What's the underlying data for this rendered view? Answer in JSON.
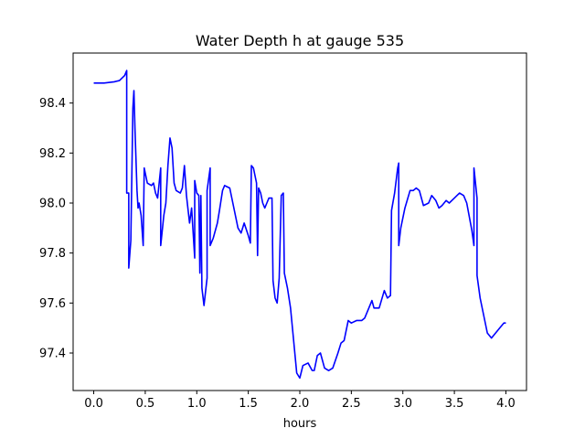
{
  "chart_data": {
    "type": "line",
    "title": "Water Depth h at gauge 535",
    "xlabel": "hours",
    "ylabel": "",
    "xlim": [
      -0.2,
      4.2
    ],
    "ylim": [
      97.25,
      98.6
    ],
    "xticks": [
      0.0,
      0.5,
      1.0,
      1.5,
      2.0,
      2.5,
      3.0,
      3.5,
      4.0
    ],
    "xtick_labels": [
      "0.0",
      "0.5",
      "1.0",
      "1.5",
      "2.0",
      "2.5",
      "3.0",
      "3.5",
      "4.0"
    ],
    "yticks": [
      97.4,
      97.6,
      97.8,
      98.0,
      98.2,
      98.4
    ],
    "ytick_labels": [
      "97.4",
      "97.6",
      "97.8",
      "98.0",
      "98.2",
      "98.4"
    ],
    "grid": false,
    "series": [
      {
        "color": "#0000ff",
        "points": [
          [
            0.0,
            98.48
          ],
          [
            0.1,
            98.48
          ],
          [
            0.2,
            98.485
          ],
          [
            0.25,
            98.49
          ],
          [
            0.3,
            98.51
          ],
          [
            0.32,
            98.53
          ],
          [
            0.32,
            98.04
          ],
          [
            0.34,
            98.04
          ],
          [
            0.34,
            97.74
          ],
          [
            0.36,
            97.85
          ],
          [
            0.38,
            98.38
          ],
          [
            0.39,
            98.45
          ],
          [
            0.4,
            98.3
          ],
          [
            0.42,
            98.05
          ],
          [
            0.43,
            97.98
          ],
          [
            0.44,
            98.0
          ],
          [
            0.46,
            97.95
          ],
          [
            0.48,
            97.83
          ],
          [
            0.49,
            98.14
          ],
          [
            0.52,
            98.08
          ],
          [
            0.56,
            98.07
          ],
          [
            0.58,
            98.08
          ],
          [
            0.6,
            98.04
          ],
          [
            0.62,
            98.02
          ],
          [
            0.65,
            98.14
          ],
          [
            0.65,
            97.83
          ],
          [
            0.68,
            97.95
          ],
          [
            0.7,
            98.0
          ],
          [
            0.72,
            98.15
          ],
          [
            0.74,
            98.26
          ],
          [
            0.76,
            98.22
          ],
          [
            0.78,
            98.08
          ],
          [
            0.8,
            98.05
          ],
          [
            0.84,
            98.04
          ],
          [
            0.86,
            98.06
          ],
          [
            0.88,
            98.15
          ],
          [
            0.9,
            98.03
          ],
          [
            0.93,
            97.92
          ],
          [
            0.95,
            97.98
          ],
          [
            0.98,
            97.78
          ],
          [
            0.98,
            98.09
          ],
          [
            1.0,
            98.04
          ],
          [
            1.02,
            98.03
          ],
          [
            1.03,
            97.72
          ],
          [
            1.04,
            98.03
          ],
          [
            1.05,
            97.66
          ],
          [
            1.07,
            97.59
          ],
          [
            1.1,
            97.7
          ],
          [
            1.1,
            98.05
          ],
          [
            1.13,
            98.14
          ],
          [
            1.13,
            97.83
          ],
          [
            1.16,
            97.86
          ],
          [
            1.2,
            97.92
          ],
          [
            1.22,
            97.97
          ],
          [
            1.25,
            98.05
          ],
          [
            1.27,
            98.07
          ],
          [
            1.32,
            98.06
          ],
          [
            1.35,
            98.0
          ],
          [
            1.4,
            97.9
          ],
          [
            1.43,
            97.88
          ],
          [
            1.46,
            97.92
          ],
          [
            1.5,
            97.87
          ],
          [
            1.52,
            97.84
          ],
          [
            1.53,
            98.15
          ],
          [
            1.55,
            98.14
          ],
          [
            1.58,
            98.08
          ],
          [
            1.59,
            97.79
          ],
          [
            1.6,
            98.06
          ],
          [
            1.62,
            98.04
          ],
          [
            1.64,
            98.0
          ],
          [
            1.66,
            97.98
          ],
          [
            1.68,
            98.0
          ],
          [
            1.7,
            98.02
          ],
          [
            1.73,
            98.02
          ],
          [
            1.74,
            97.69
          ],
          [
            1.76,
            97.62
          ],
          [
            1.78,
            97.6
          ],
          [
            1.8,
            97.7
          ],
          [
            1.82,
            98.03
          ],
          [
            1.84,
            98.04
          ],
          [
            1.85,
            97.72
          ],
          [
            1.88,
            97.66
          ],
          [
            1.91,
            97.58
          ],
          [
            1.94,
            97.45
          ],
          [
            1.97,
            97.32
          ],
          [
            2.0,
            97.3
          ],
          [
            2.03,
            97.35
          ],
          [
            2.08,
            97.36
          ],
          [
            2.12,
            97.33
          ],
          [
            2.14,
            97.33
          ],
          [
            2.17,
            97.39
          ],
          [
            2.2,
            97.4
          ],
          [
            2.24,
            97.34
          ],
          [
            2.28,
            97.33
          ],
          [
            2.32,
            97.34
          ],
          [
            2.37,
            97.4
          ],
          [
            2.4,
            97.44
          ],
          [
            2.43,
            97.45
          ],
          [
            2.47,
            97.53
          ],
          [
            2.5,
            97.52
          ],
          [
            2.55,
            97.53
          ],
          [
            2.6,
            97.53
          ],
          [
            2.63,
            97.54
          ],
          [
            2.67,
            97.58
          ],
          [
            2.7,
            97.61
          ],
          [
            2.72,
            97.58
          ],
          [
            2.77,
            97.58
          ],
          [
            2.82,
            97.65
          ],
          [
            2.85,
            97.62
          ],
          [
            2.88,
            97.63
          ],
          [
            2.89,
            97.97
          ],
          [
            2.92,
            98.04
          ],
          [
            2.95,
            98.14
          ],
          [
            2.96,
            98.16
          ],
          [
            2.96,
            97.83
          ],
          [
            2.98,
            97.9
          ],
          [
            3.02,
            97.98
          ],
          [
            3.07,
            98.05
          ],
          [
            3.1,
            98.05
          ],
          [
            3.13,
            98.06
          ],
          [
            3.16,
            98.05
          ],
          [
            3.2,
            97.99
          ],
          [
            3.25,
            98.0
          ],
          [
            3.28,
            98.03
          ],
          [
            3.32,
            98.01
          ],
          [
            3.35,
            97.98
          ],
          [
            3.38,
            97.99
          ],
          [
            3.42,
            98.01
          ],
          [
            3.45,
            98.0
          ],
          [
            3.5,
            98.02
          ],
          [
            3.55,
            98.04
          ],
          [
            3.59,
            98.03
          ],
          [
            3.62,
            98.0
          ],
          [
            3.67,
            97.89
          ],
          [
            3.69,
            97.83
          ],
          [
            3.69,
            98.14
          ],
          [
            3.72,
            98.02
          ],
          [
            3.72,
            97.71
          ],
          [
            3.75,
            97.62
          ],
          [
            3.78,
            97.56
          ],
          [
            3.82,
            97.48
          ],
          [
            3.86,
            97.46
          ],
          [
            3.9,
            97.48
          ],
          [
            3.94,
            97.5
          ],
          [
            3.98,
            97.52
          ],
          [
            4.0,
            97.52
          ]
        ]
      }
    ]
  }
}
